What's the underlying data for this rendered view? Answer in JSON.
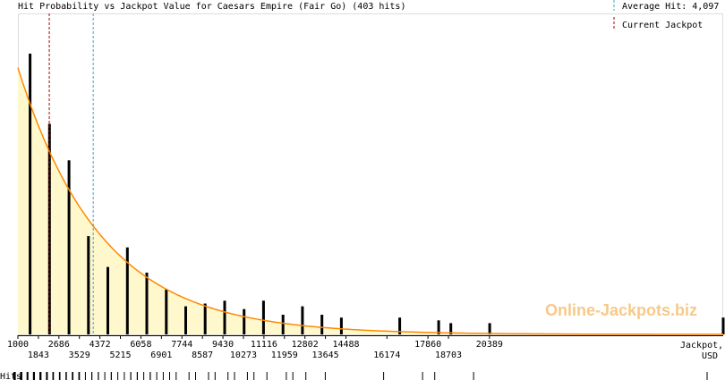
{
  "chart_data": {
    "type": "bar",
    "title": "Hit Probability vs Jackpot Value for Caesars Empire (Fair Go) (403 hits)",
    "xlabel": "Jackpot,",
    "xunit": "USD",
    "hits_label": "Hits",
    "watermark": "Online-Jackpots.biz",
    "legend": {
      "average": "Average Hit: 4,097",
      "current": "Current Jackpot"
    },
    "xlim": [
      1000,
      30000
    ],
    "x_ticks_upper": [
      "1000",
      "2686",
      "4372",
      "6058",
      "7744",
      "9430",
      "11116",
      "12802",
      "14488",
      "17860",
      "20389"
    ],
    "x_ticks_lower": [
      "1843",
      "3529",
      "5215",
      "6901",
      "8587",
      "10273",
      "11959",
      "13645",
      "16174",
      "18703"
    ],
    "average_hit": 4097,
    "current_jackpot": 2290,
    "bars": {
      "x": [
        1500,
        2300,
        3100,
        3900,
        4700,
        5500,
        6300,
        7100,
        7900,
        8700,
        9500,
        10300,
        11100,
        11900,
        12700,
        13500,
        14300,
        16700,
        18300,
        18800,
        20400,
        30000
      ],
      "values": [
        100,
        75,
        62,
        35,
        24,
        31,
        22,
        16,
        10,
        11,
        12,
        9,
        12,
        7,
        10,
        7,
        6,
        6,
        5,
        4,
        4,
        6
      ]
    },
    "fit_curve": {
      "start": 95,
      "decay_per_usd": 0.000291
    },
    "colors": {
      "curve": "#ff8800",
      "fill": "#fff8cc",
      "bars": "#000000",
      "average_line": "#3aa0d0",
      "current_line": "#aa0000"
    }
  }
}
